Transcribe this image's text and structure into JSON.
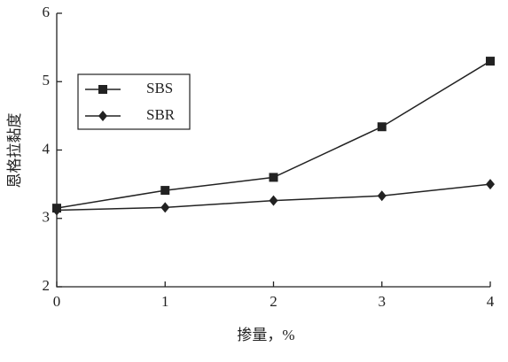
{
  "chart_data": {
    "type": "line",
    "x": [
      0,
      1,
      2,
      3,
      4
    ],
    "series": [
      {
        "name": "SBS",
        "color": "#222222",
        "marker": "square",
        "values": [
          3.15,
          3.41,
          3.6,
          4.34,
          5.3
        ]
      },
      {
        "name": "SBR",
        "color": "#222222",
        "marker": "diamond",
        "values": [
          3.12,
          3.16,
          3.26,
          3.33,
          3.5
        ]
      }
    ],
    "xlim": [
      0,
      4
    ],
    "xticks": [
      0,
      1,
      2,
      3,
      4
    ],
    "ylim": [
      2,
      6
    ],
    "yticks": [
      2,
      3,
      4,
      5,
      6
    ],
    "x_label": "掺量，%",
    "y_label": "恩格拉黏度",
    "legend": "upper left",
    "grid": false
  }
}
